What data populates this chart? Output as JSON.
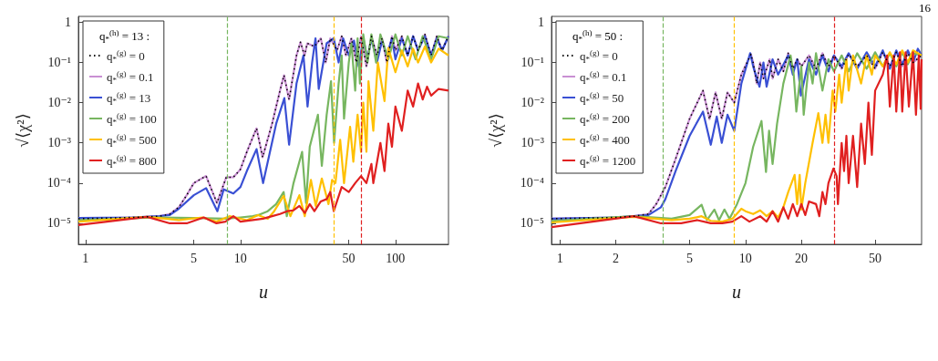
{
  "chart_data": [
    {
      "type": "line",
      "xlabel": "u",
      "ylabel": "√⟨χ²⟩",
      "legend_title": "q$_{*}$$^{(h)}$ = 13 :",
      "log": "xy",
      "grid": false,
      "legend": "top left",
      "marker": "none",
      "line_style": "solid",
      "xlim": [
        0.9,
        220
      ],
      "xticks": [
        1,
        5,
        10,
        50,
        100
      ],
      "ylim": [
        3e-06,
        1.4
      ],
      "yticks": [
        {
          "value": 1e-05,
          "label": "10⁻⁵"
        },
        {
          "value": 0.0001,
          "label": "10⁻⁴"
        },
        {
          "value": 0.001,
          "label": "10⁻³"
        },
        {
          "value": 0.01,
          "label": "10⁻²"
        },
        {
          "value": 0.1,
          "label": "10⁻¹"
        },
        1
      ],
      "ref_lines": [
        {
          "axis": "x",
          "value": 8.2,
          "color": "#77b660",
          "line_style": "dashed"
        },
        {
          "axis": "x",
          "value": 40,
          "color": "#ffc000",
          "line_style": "dashed"
        },
        {
          "axis": "x",
          "value": 60,
          "color": "#e02020",
          "line_style": "dashed"
        }
      ],
      "series": [
        {
          "name": "q$_{*}$$^{(g)}$ = 0",
          "color": "#000000",
          "line_style": "dotted",
          "x": [
            0.9,
            2,
            3,
            3.5,
            4,
            4.5,
            5,
            6,
            7.05,
            8.1,
            9,
            10,
            11,
            12.7,
            13.9,
            16,
            18,
            19.1,
            20.6,
            23,
            24.4,
            25.9,
            27,
            30,
            33,
            35.5,
            38,
            42,
            45,
            48,
            52,
            56,
            60,
            65,
            70,
            76,
            82,
            88,
            95,
            100,
            110,
            120,
            130,
            140,
            155,
            170,
            185,
            200,
            220
          ],
          "values": [
            1.3e-05,
            1.4e-05,
            1.5e-05,
            1.7e-05,
            2.5e-05,
            5e-05,
            0.0001,
            0.00015,
            3.2e-05,
            0.00014,
            0.00014,
            0.00022,
            0.0006,
            0.0023,
            0.00044,
            0.003,
            0.02,
            0.048,
            0.012,
            0.15,
            0.32,
            0.15,
            0.3,
            0.25,
            0.4,
            0.1,
            0.4,
            0.2,
            0.45,
            0.15,
            0.4,
            0.1,
            0.45,
            0.08,
            0.45,
            0.15,
            0.4,
            0.1,
            0.45,
            0.2,
            0.45,
            0.15,
            0.45,
            0.2,
            0.5,
            0.15,
            0.45,
            0.2,
            0.45
          ]
        },
        {
          "name": "q$_{*}$$^{(g)}$ = 0.1",
          "color": "#c98fd3",
          "x": [
            0.9,
            2,
            3,
            3.5,
            4,
            4.5,
            5,
            6,
            7.05,
            8.1,
            9,
            10,
            11,
            12.7,
            13.9,
            16,
            18,
            19.1,
            20.6,
            23,
            24.4,
            25.9,
            27,
            30,
            33,
            35.5,
            38,
            42,
            45,
            48,
            52,
            56,
            60,
            65,
            70,
            76,
            82,
            88,
            95,
            100,
            110,
            120,
            130,
            140,
            155,
            170,
            185,
            200,
            220
          ],
          "values": [
            1.3e-05,
            1.4e-05,
            1.5e-05,
            1.7e-05,
            2.5e-05,
            5e-05,
            0.0001,
            0.00015,
            3.2e-05,
            0.00014,
            0.00014,
            0.00022,
            0.0006,
            0.0023,
            0.00044,
            0.003,
            0.02,
            0.048,
            0.012,
            0.15,
            0.32,
            0.15,
            0.3,
            0.25,
            0.4,
            0.1,
            0.4,
            0.2,
            0.45,
            0.15,
            0.4,
            0.1,
            0.45,
            0.08,
            0.45,
            0.15,
            0.4,
            0.1,
            0.45,
            0.2,
            0.45,
            0.15,
            0.45,
            0.2,
            0.5,
            0.15,
            0.45,
            0.2,
            0.45
          ]
        },
        {
          "name": "q$_{*}$$^{(g)}$ = 13",
          "color": "#3a50d4",
          "x": [
            0.9,
            2,
            3,
            3.5,
            4,
            5,
            6,
            7.1,
            7.8,
            9,
            10,
            11,
            12.7,
            14,
            17,
            19.2,
            20.6,
            23,
            25.5,
            27.1,
            29,
            30.5,
            32,
            36,
            40,
            43,
            46,
            50,
            54,
            58,
            62,
            66,
            70,
            76,
            82,
            88,
            95,
            100,
            110,
            120,
            130,
            140,
            155,
            170,
            185,
            200,
            220
          ],
          "values": [
            1.35e-05,
            1.4e-05,
            1.5e-05,
            1.6e-05,
            2.3e-05,
            5e-05,
            7.5e-05,
            2e-05,
            7e-05,
            5.5e-05,
            8e-05,
            0.0002,
            0.0007,
            0.0001,
            0.003,
            0.013,
            0.0009,
            0.03,
            0.15,
            0.008,
            0.1,
            0.4,
            0.022,
            0.3,
            0.4,
            0.1,
            0.4,
            0.15,
            0.35,
            0.08,
            0.4,
            0.12,
            0.4,
            0.1,
            0.35,
            0.15,
            0.4,
            0.12,
            0.4,
            0.15,
            0.45,
            0.2,
            0.45,
            0.15,
            0.4,
            0.2,
            0.45
          ]
        },
        {
          "name": "q$_{*}$$^{(g)}$ = 100",
          "color": "#77b660",
          "x": [
            0.9,
            3,
            5,
            8,
            10,
            12,
            13,
            15,
            17,
            19,
            19.9,
            22,
            25,
            26.5,
            28,
            31.6,
            33.5,
            36,
            38.4,
            40.2,
            43,
            45,
            46.6,
            50,
            52,
            55,
            57,
            59,
            62,
            66,
            70,
            75,
            80,
            90,
            100,
            110,
            120,
            135,
            150,
            170,
            190,
            220
          ],
          "values": [
            1.2e-05,
            1.4e-05,
            1.35e-05,
            1.3e-05,
            1.4e-05,
            1.5e-05,
            1.6e-05,
            2e-05,
            3e-05,
            6e-05,
            1.5e-05,
            0.0001,
            0.0006,
            3.2e-05,
            0.0008,
            0.005,
            0.00027,
            0.005,
            0.034,
            0.001,
            0.03,
            0.15,
            0.004,
            0.1,
            0.3,
            0.02,
            0.4,
            0.03,
            0.5,
            0.1,
            0.5,
            0.1,
            0.5,
            0.12,
            0.5,
            0.15,
            0.45,
            0.12,
            0.45,
            0.12,
            0.45,
            0.4
          ]
        },
        {
          "name": "q$_{*}$$^{(g)}$ = 500",
          "color": "#ffc000",
          "x": [
            0.9,
            2.5,
            4,
            5.7,
            7,
            8.5,
            11,
            13,
            15,
            16.5,
            19,
            21,
            24,
            26,
            28.5,
            30.6,
            33.5,
            37,
            39,
            41,
            44,
            46.6,
            51,
            53.5,
            57,
            60,
            62,
            65,
            67,
            72,
            77,
            85,
            90,
            100,
            110,
            120,
            130,
            140,
            155,
            170,
            190,
            220
          ],
          "values": [
            1.1e-05,
            1.45e-05,
            1.2e-05,
            1.4e-05,
            1.1e-05,
            1.5e-05,
            1.2e-05,
            1.6e-05,
            1.3e-05,
            2e-05,
            4.8e-05,
            1.5e-05,
            5e-05,
            1.5e-05,
            0.00012,
            2.7e-05,
            0.00013,
            3e-05,
            0.00012,
            0.0001,
            0.0012,
            0.0001,
            0.0025,
            0.00034,
            0.005,
            0.0006,
            0.01,
            0.0006,
            0.034,
            0.002,
            0.1,
            0.011,
            0.23,
            0.057,
            0.2,
            0.08,
            0.22,
            0.1,
            0.25,
            0.1,
            0.22,
            0.15
          ]
        },
        {
          "name": "q$_{*}$$^{(g)}$ = 800",
          "color": "#e02020",
          "x": [
            0.9,
            2.5,
            3.5,
            4.5,
            5.8,
            7,
            8,
            9,
            10,
            12,
            14,
            16,
            18,
            20,
            22,
            24,
            26,
            28,
            30,
            33,
            36,
            38,
            40,
            45,
            50,
            55,
            60,
            65,
            70,
            72,
            80,
            85,
            90,
            95,
            100,
            110,
            120,
            130,
            140,
            150,
            160,
            170,
            190,
            220
          ],
          "values": [
            9e-06,
            1.45e-05,
            1e-05,
            1e-05,
            1.4e-05,
            1e-05,
            1.1e-05,
            1.5e-05,
            1.1e-05,
            1.2e-05,
            1.3e-05,
            1.5e-05,
            1.7e-05,
            2e-05,
            2.1e-05,
            2.7e-05,
            1.8e-05,
            3e-05,
            2e-05,
            3.5e-05,
            4e-05,
            6e-05,
            2e-05,
            8e-05,
            6e-05,
            0.0001,
            0.00015,
            0.0001,
            0.0003,
            0.0001,
            0.001,
            0.0002,
            0.003,
            0.0008,
            0.008,
            0.002,
            0.02,
            0.008,
            0.03,
            0.012,
            0.025,
            0.015,
            0.022,
            0.02
          ]
        }
      ]
    },
    {
      "type": "line",
      "xlabel": "u",
      "ylabel": "√⟨χ²⟩",
      "legend_title": "q$_{*}$$^{(h)}$ = 50 :",
      "log": "xy",
      "grid": false,
      "legend": "top left",
      "marker": "none",
      "line_style": "solid",
      "annotations": [
        "16"
      ],
      "xlim": [
        0.9,
        89
      ],
      "xticks": [
        1,
        2,
        5,
        10,
        20,
        50
      ],
      "ylim": [
        3e-06,
        1.4
      ],
      "yticks": [
        {
          "value": 1e-05,
          "label": "10⁻⁵"
        },
        {
          "value": 0.0001,
          "label": "10⁻⁴"
        },
        {
          "value": 0.001,
          "label": "10⁻³"
        },
        {
          "value": 0.01,
          "label": "10⁻²"
        },
        {
          "value": 0.1,
          "label": "10⁻¹"
        },
        1
      ],
      "ref_lines": [
        {
          "axis": "x",
          "value": 3.6,
          "color": "#77b660",
          "line_style": "dashed"
        },
        {
          "axis": "x",
          "value": 8.7,
          "color": "#ffc000",
          "line_style": "dashed"
        },
        {
          "axis": "x",
          "value": 30,
          "color": "#e02020",
          "line_style": "dashed"
        }
      ],
      "series": [
        {
          "name": "q$_{*}$$^{(g)}$ = 0",
          "color": "#000000",
          "line_style": "dotted",
          "x": [
            0.9,
            2,
            2.5,
            3,
            3.3,
            3.7,
            4.2,
            5,
            5.9,
            6.4,
            6.9,
            7.45,
            8,
            8.7,
            9.5,
            10.7,
            11,
            11.5,
            12,
            12.5,
            13.5,
            14,
            15,
            16,
            17,
            18,
            19,
            20,
            22,
            24,
            26,
            28,
            30,
            33,
            36,
            40,
            45,
            50,
            55,
            60,
            65,
            70,
            75,
            80,
            89
          ],
          "values": [
            1.3e-05,
            1.4e-05,
            1.5e-05,
            1.7e-05,
            3e-05,
            8e-05,
            0.0004,
            0.004,
            0.02,
            0.0039,
            0.018,
            0.004,
            0.018,
            0.01,
            0.05,
            0.16,
            0.1,
            0.03,
            0.1,
            0.04,
            0.12,
            0.04,
            0.12,
            0.06,
            0.17,
            0.07,
            0.12,
            0.08,
            0.15,
            0.07,
            0.17,
            0.08,
            0.15,
            0.07,
            0.16,
            0.08,
            0.15,
            0.07,
            0.18,
            0.08,
            0.18,
            0.08,
            0.17,
            0.1,
            0.15
          ]
        },
        {
          "name": "q$_{*}$$^{(g)}$ = 0.1",
          "color": "#c98fd3",
          "x": [
            0.9,
            2,
            2.5,
            3,
            3.3,
            3.7,
            4.2,
            5,
            5.9,
            6.4,
            6.9,
            7.45,
            8,
            8.7,
            9.5,
            10.7,
            11,
            11.5,
            12,
            12.5,
            13.5,
            14,
            15,
            16,
            17,
            18,
            19,
            20,
            22,
            24,
            26,
            28,
            30,
            33,
            36,
            40,
            45,
            50,
            55,
            60,
            65,
            70,
            75,
            80,
            89
          ],
          "values": [
            1.3e-05,
            1.4e-05,
            1.5e-05,
            1.7e-05,
            3e-05,
            8e-05,
            0.0004,
            0.004,
            0.02,
            0.0039,
            0.018,
            0.004,
            0.018,
            0.01,
            0.05,
            0.16,
            0.1,
            0.03,
            0.1,
            0.04,
            0.12,
            0.04,
            0.12,
            0.06,
            0.17,
            0.07,
            0.12,
            0.08,
            0.15,
            0.07,
            0.17,
            0.08,
            0.15,
            0.07,
            0.16,
            0.08,
            0.15,
            0.07,
            0.18,
            0.08,
            0.18,
            0.08,
            0.17,
            0.1,
            0.15
          ]
        },
        {
          "name": "q$_{*}$$^{(g)}$ = 50",
          "color": "#3a50d4",
          "x": [
            0.9,
            2,
            3,
            3.5,
            3.7,
            4.2,
            5,
            5.9,
            6.5,
            7,
            7.45,
            8,
            8.7,
            9.5,
            10.6,
            11,
            11.9,
            12.5,
            13,
            14,
            15,
            17,
            18,
            19,
            19.9,
            22,
            24,
            26,
            28,
            30,
            33,
            36,
            40,
            45,
            50,
            55,
            60,
            65,
            70,
            75,
            80,
            85,
            89
          ],
          "values": [
            1.3e-05,
            1.4e-05,
            1.6e-05,
            2.5e-05,
            4e-05,
            0.0002,
            0.0015,
            0.006,
            0.0009,
            0.0045,
            0.001,
            0.005,
            0.002,
            0.03,
            0.17,
            0.08,
            0.025,
            0.1,
            0.025,
            0.12,
            0.05,
            0.15,
            0.05,
            0.12,
            0.015,
            0.12,
            0.05,
            0.15,
            0.06,
            0.15,
            0.08,
            0.17,
            0.07,
            0.18,
            0.08,
            0.2,
            0.07,
            0.2,
            0.09,
            0.2,
            0.1,
            0.22,
            0.15
          ]
        },
        {
          "name": "q$_{*}$$^{(g)}$ = 200",
          "color": "#77b660",
          "x": [
            0.9,
            2.5,
            4,
            5,
            5.8,
            6.2,
            6.8,
            7.2,
            7.7,
            8.2,
            9,
            10,
            11,
            12.2,
            12.9,
            13.4,
            14,
            14.8,
            16,
            17.5,
            18.2,
            18.8,
            20,
            20.6,
            22,
            23,
            24,
            26,
            28,
            30,
            33,
            36,
            40,
            45,
            50,
            55,
            60,
            65,
            70,
            75,
            80,
            89
          ],
          "values": [
            1.15e-05,
            1.5e-05,
            1.3e-05,
            1.6e-05,
            2.9e-05,
            1.2e-05,
            2.2e-05,
            1.2e-05,
            2.2e-05,
            1.3e-05,
            3e-05,
            0.0001,
            0.0008,
            0.0035,
            0.00019,
            0.002,
            0.0003,
            0.003,
            0.03,
            0.15,
            0.05,
            0.006,
            0.08,
            0.005,
            0.1,
            0.03,
            0.17,
            0.02,
            0.12,
            0.06,
            0.15,
            0.06,
            0.17,
            0.07,
            0.18,
            0.08,
            0.17,
            0.08,
            0.18,
            0.09,
            0.17,
            0.15
          ]
        },
        {
          "name": "q$_{*}$$^{(g)}$ = 400",
          "color": "#ffc000",
          "x": [
            0.9,
            2.5,
            4,
            5,
            5.8,
            6.5,
            7.5,
            8.5,
            9.5,
            10,
            11,
            12,
            13,
            14,
            15,
            16,
            17,
            18.4,
            19,
            19.6,
            20,
            21,
            23,
            24.7,
            26,
            27,
            28,
            29.5,
            30.5,
            32,
            33,
            35,
            36,
            38,
            42,
            45,
            48,
            50,
            55,
            60,
            65,
            70,
            75,
            80,
            89
          ],
          "values": [
            1.05e-05,
            1.45e-05,
            1.2e-05,
            1.3e-05,
            1.5e-05,
            1.15e-05,
            1.1e-05,
            1.3e-05,
            2.3e-05,
            2e-05,
            1.7e-05,
            2.1e-05,
            1.5e-05,
            2e-05,
            1.4e-05,
            2.5e-05,
            6e-05,
            0.00016,
            3e-05,
            0.00016,
            2.2e-05,
            0.0001,
            0.001,
            0.0055,
            0.001,
            0.005,
            0.001,
            0.02,
            0.006,
            0.05,
            0.01,
            0.12,
            0.02,
            0.15,
            0.03,
            0.15,
            0.05,
            0.15,
            0.08,
            0.18,
            0.09,
            0.2,
            0.1,
            0.2,
            0.15
          ]
        },
        {
          "name": "q$_{*}$$^{(g)}$ = 1200",
          "color": "#e02020",
          "x": [
            0.9,
            2.5,
            3.5,
            4.5,
            5.5,
            6.5,
            7.5,
            8.5,
            9.5,
            10.5,
            12,
            13,
            14,
            15,
            16,
            17,
            18,
            19,
            20,
            21,
            22,
            24,
            25,
            26,
            27,
            28,
            29.8,
            31,
            31.5,
            33,
            34,
            35,
            36,
            38,
            40,
            42,
            44,
            46,
            48,
            50,
            55,
            58,
            60,
            63,
            65,
            68,
            70,
            73,
            76,
            80,
            83,
            86,
            88,
            89
          ],
          "values": [
            8e-06,
            1.5e-05,
            1e-05,
            1e-05,
            1.2e-05,
            1e-05,
            1e-05,
            1.1e-05,
            1.5e-05,
            1.1e-05,
            1.5e-05,
            1.1e-05,
            2e-05,
            1.1e-05,
            2.5e-05,
            1.3e-05,
            3e-05,
            1.5e-05,
            3e-05,
            1.6e-05,
            3.5e-05,
            3e-05,
            1.5e-05,
            6e-05,
            3e-05,
            0.0001,
            0.00023,
            0.00015,
            3e-05,
            0.001,
            0.0002,
            0.0015,
            0.0001,
            0.0015,
            8e-05,
            0.003,
            0.0003,
            0.01,
            0.0005,
            0.02,
            0.05,
            0.15,
            0.008,
            0.15,
            0.006,
            0.18,
            0.006,
            0.18,
            0.008,
            0.18,
            0.005,
            0.15,
            0.007,
            0.12
          ]
        }
      ]
    }
  ]
}
